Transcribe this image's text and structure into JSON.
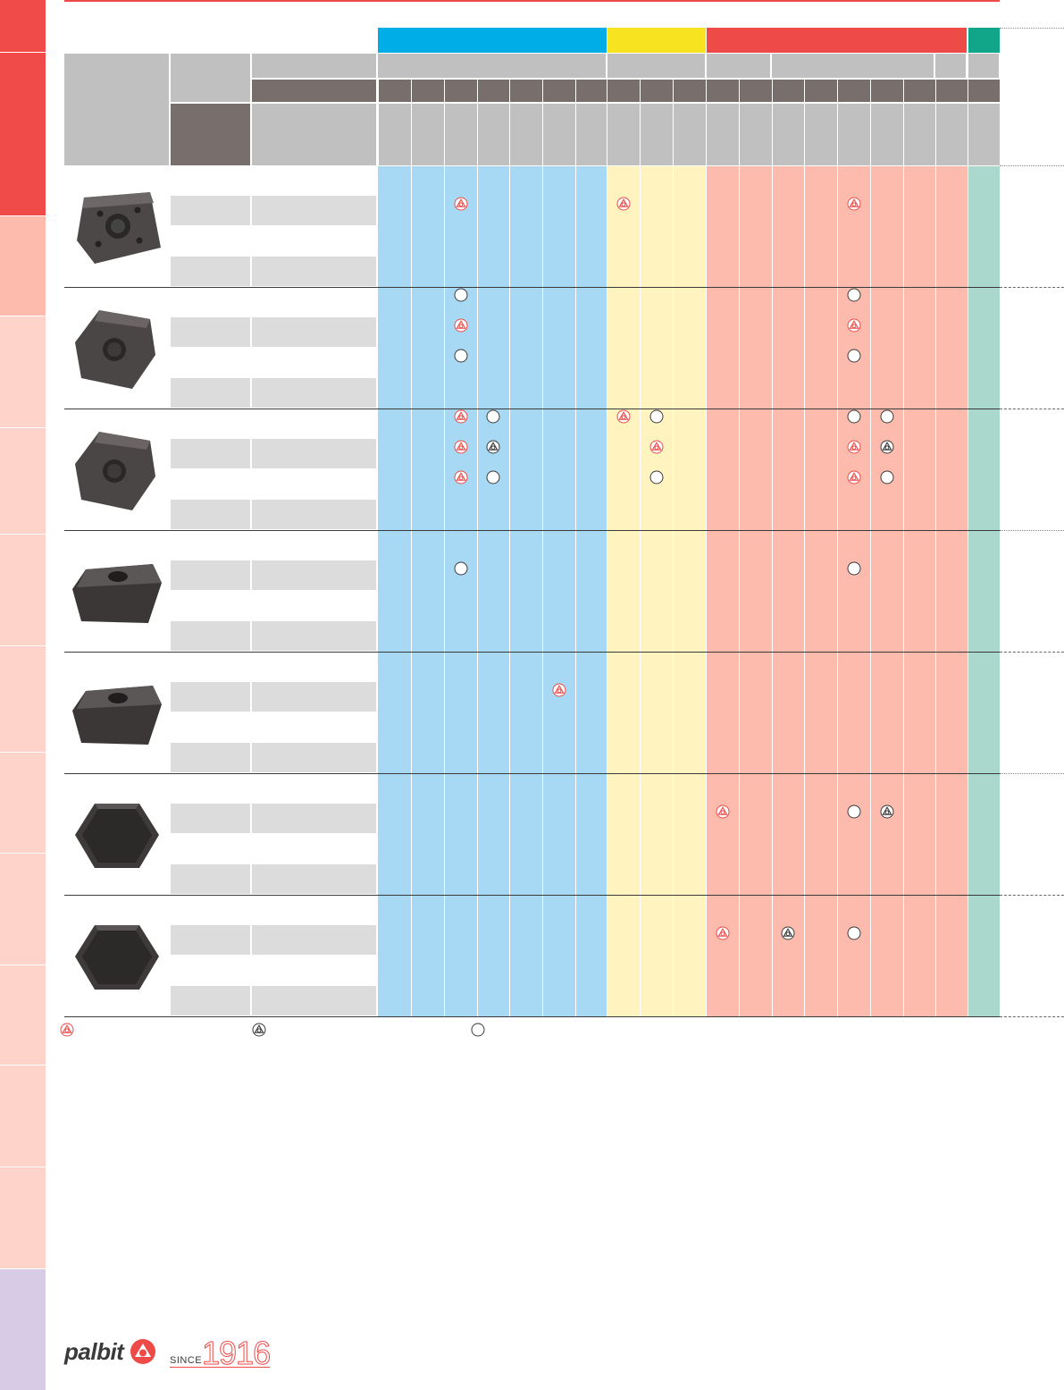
{
  "colors": {
    "group_P": "#00ade7",
    "group_M": "#f7e31f",
    "group_K": "#ee4a47",
    "group_N": "#11a58a",
    "col_P": "#a7d9f4",
    "col_M": "#fff4bf",
    "col_K": "#fcbbac",
    "col_N": "#abd8cd",
    "header_gray": "#c0c0c0",
    "header_dark": "#786f6c",
    "mark_red": "#ee4a47",
    "mark_dark": "#3a3a3a",
    "sidebar_tabs": [
      "#f04b48",
      "#f04b48",
      "#fcbbac",
      "#fdd3ca",
      "#fdd3ca",
      "#fdd3ca",
      "#fdd3ca",
      "#fdd3ca",
      "#fdd3ca",
      "#fdd3ca",
      "#fdd3ca",
      "#d7cbe6"
    ]
  },
  "legend": [
    {
      "icon": "palbit-red-recommended-icon"
    },
    {
      "icon": "palbit-dark-alternative-icon"
    },
    {
      "icon": "circle-option-icon"
    }
  ],
  "rows": [
    {
      "icon": "square-insert-4hole-icon",
      "marks": [
        {
          "c": 2,
          "l": 0,
          "t": "red"
        },
        {
          "c": 7,
          "l": 0,
          "t": "red"
        },
        {
          "c": 14,
          "l": 0,
          "t": "red"
        }
      ]
    },
    {
      "icon": "rhombic-insert-icon",
      "marks": [
        {
          "c": 2,
          "l": -1,
          "t": "circle"
        },
        {
          "c": 2,
          "l": 0,
          "t": "red"
        },
        {
          "c": 2,
          "l": 1,
          "t": "circle"
        },
        {
          "c": 14,
          "l": -1,
          "t": "circle"
        },
        {
          "c": 14,
          "l": 0,
          "t": "red"
        },
        {
          "c": 14,
          "l": 1,
          "t": "circle"
        }
      ]
    },
    {
      "icon": "rhombic-insert-wide-icon",
      "marks": [
        {
          "c": 2,
          "l": -1,
          "t": "red"
        },
        {
          "c": 3,
          "l": -1,
          "t": "circle"
        },
        {
          "c": 7,
          "l": -1,
          "t": "red"
        },
        {
          "c": 8,
          "l": -1,
          "t": "circle"
        },
        {
          "c": 14,
          "l": -1,
          "t": "circle"
        },
        {
          "c": 15,
          "l": -1,
          "t": "circle"
        },
        {
          "c": 2,
          "l": 0,
          "t": "red"
        },
        {
          "c": 3,
          "l": 0,
          "t": "dark"
        },
        {
          "c": 8,
          "l": 0,
          "t": "red"
        },
        {
          "c": 14,
          "l": 0,
          "t": "red"
        },
        {
          "c": 15,
          "l": 0,
          "t": "dark"
        },
        {
          "c": 2,
          "l": 1,
          "t": "red"
        },
        {
          "c": 3,
          "l": 1,
          "t": "circle"
        },
        {
          "c": 8,
          "l": 1,
          "t": "circle"
        },
        {
          "c": 14,
          "l": 1,
          "t": "red"
        },
        {
          "c": 15,
          "l": 1,
          "t": "circle"
        }
      ]
    },
    {
      "icon": "parallelogram-insert-icon",
      "marks": [
        {
          "c": 2,
          "l": 0,
          "t": "circle"
        },
        {
          "c": 14,
          "l": 0,
          "t": "circle"
        }
      ]
    },
    {
      "icon": "parallelogram-insert-sharp-icon",
      "marks": [
        {
          "c": 5,
          "l": 0,
          "t": "red"
        }
      ]
    },
    {
      "icon": "hexagonal-insert-icon",
      "marks": [
        {
          "c": 10,
          "l": 0,
          "t": "red"
        },
        {
          "c": 14,
          "l": 0,
          "t": "circle"
        },
        {
          "c": 15,
          "l": 0,
          "t": "dark"
        }
      ]
    },
    {
      "icon": "hexagonal-insert-large-icon",
      "marks": [
        {
          "c": 10,
          "l": 0,
          "t": "red"
        },
        {
          "c": 12,
          "l": 0,
          "t": "dark"
        },
        {
          "c": 14,
          "l": 0,
          "t": "circle"
        }
      ]
    }
  ],
  "brand": {
    "name": "palbit",
    "since_label": "SINCE",
    "year": "1916"
  }
}
